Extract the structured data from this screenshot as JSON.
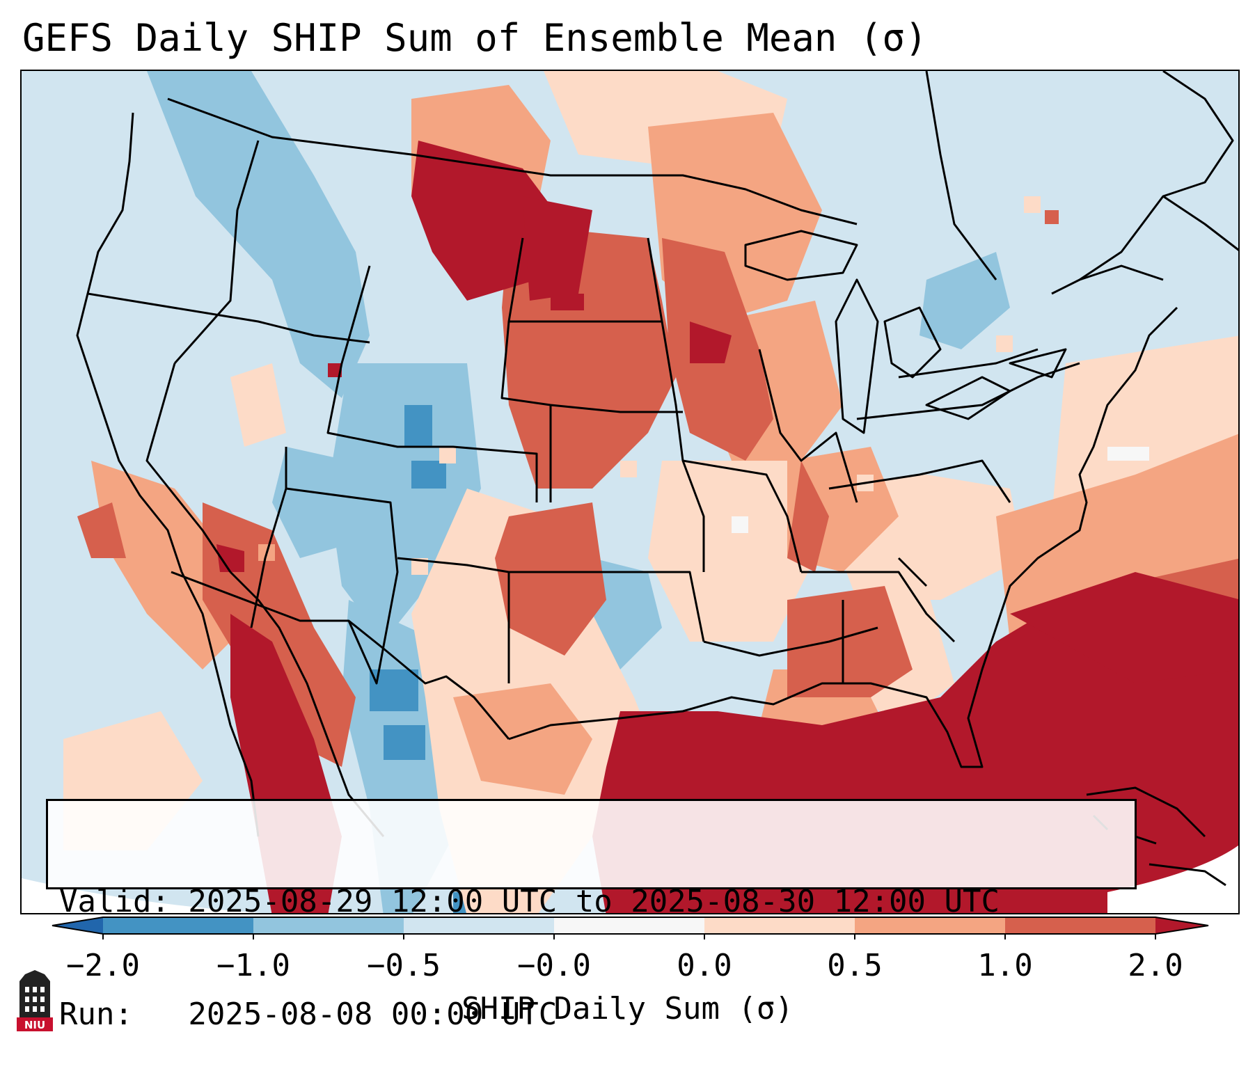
{
  "title": "GEFS Daily SHIP Sum of Ensemble Mean (σ)",
  "info": {
    "valid_line": "Valid: 2025-08-29 12:00 UTC to 2025-08-30 12:00 UTC",
    "run_line": "Run:   2025-08-08 00:00 UTC"
  },
  "colorbar": {
    "label": "SHIP Daily Sum (σ)",
    "tick_labels": [
      "−2.0",
      "−1.0",
      "−0.5",
      "−0.0",
      "0.0",
      "0.5",
      "1.0",
      "2.0"
    ],
    "bin_colors": [
      "#4393c3",
      "#92c5de",
      "#d1e5f0",
      "#f7f7f7",
      "#fddbc7",
      "#f4a582",
      "#d6604d"
    ],
    "under_color": "#2166ac",
    "over_color": "#b2182b"
  },
  "logo": {
    "text": "NIU",
    "icon": "niu-logo-icon",
    "colors": {
      "tower": "#222222",
      "banner": "#c8102e"
    }
  },
  "map_palette": {
    "ocean": "#d1e5f0",
    "weak_neg": "#92c5de",
    "strong_neg": "#4393c3",
    "neutral": "#f7f7f7",
    "weak_pos": "#fddbc7",
    "mod_pos": "#f4a582",
    "strong_pos": "#d6604d",
    "extreme_pos": "#b2182b",
    "boundary": "#000000"
  }
}
